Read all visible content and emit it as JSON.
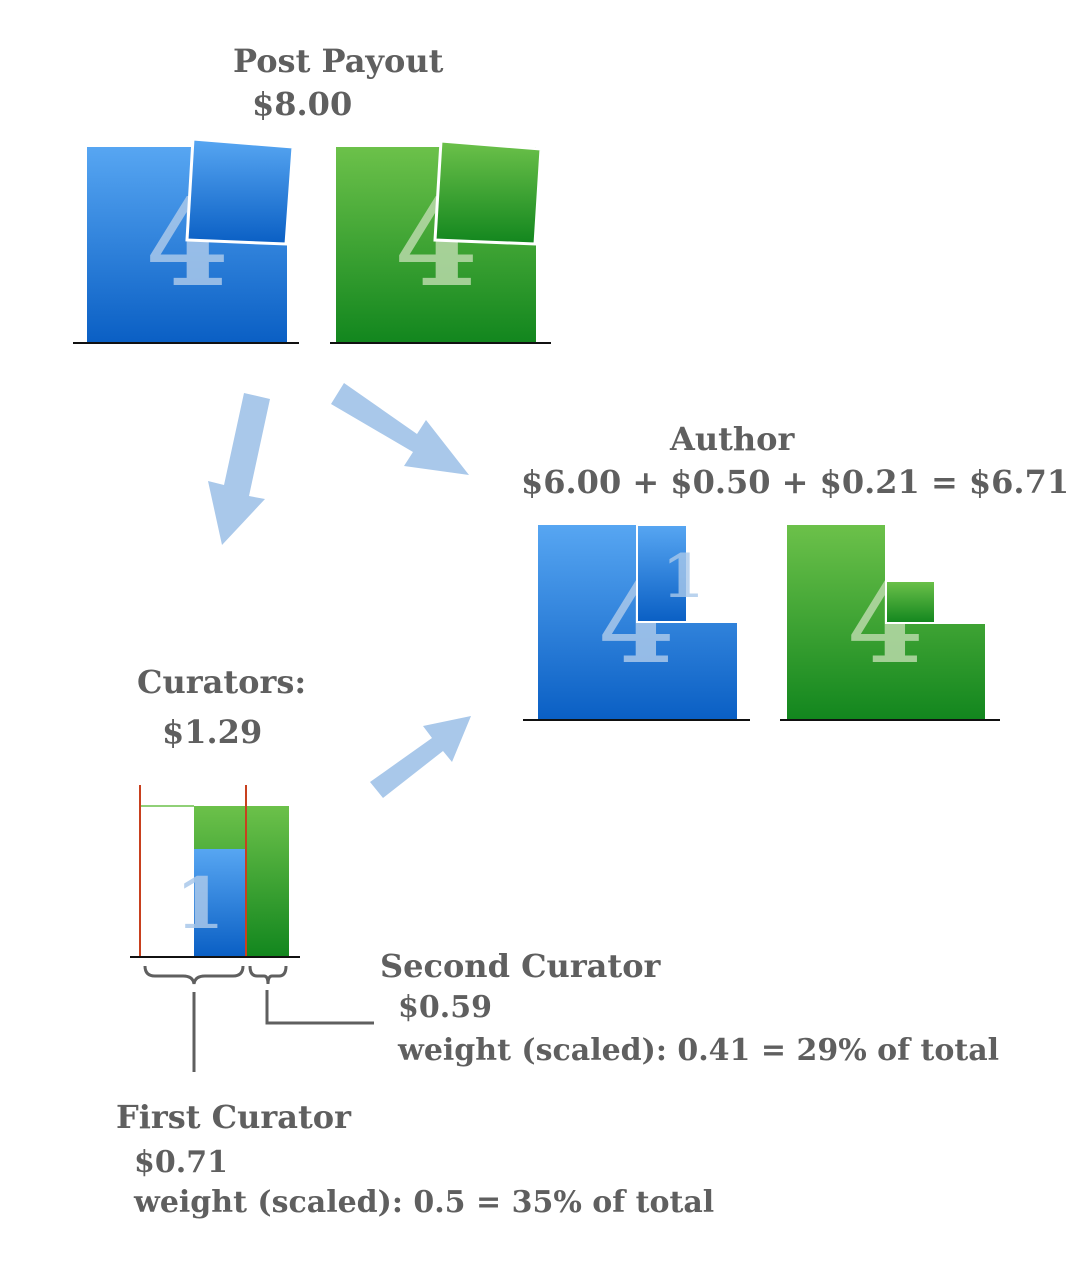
{
  "post_payout": {
    "title": "Post Payout",
    "amount": "$8.00",
    "digit_left": "4",
    "digit_right": "4"
  },
  "author": {
    "title": "Author",
    "formula": "$6.00 + $0.50 + $0.21 = $6.71",
    "digit_left": "4",
    "digit_left_small": "1",
    "digit_right": "4"
  },
  "curators": {
    "title": "Curators:",
    "amount": "$1.29",
    "digit": "1"
  },
  "second_curator": {
    "title": "Second Curator",
    "amount": "$0.59",
    "weight": "weight (scaled): 0.41 = 29% of total"
  },
  "first_curator": {
    "title": "First Curator",
    "amount": "$0.71",
    "weight": "weight (scaled): 0.5 = 35%  of total"
  },
  "colors": {
    "blue_top": "#57a6f2",
    "blue_bottom": "#0a5fc4",
    "green_top": "#6cc14a",
    "green_bottom": "#12861e",
    "arrow": "#a9c8ea",
    "text": "#5f5f5f",
    "red_line": "#c8401e"
  }
}
